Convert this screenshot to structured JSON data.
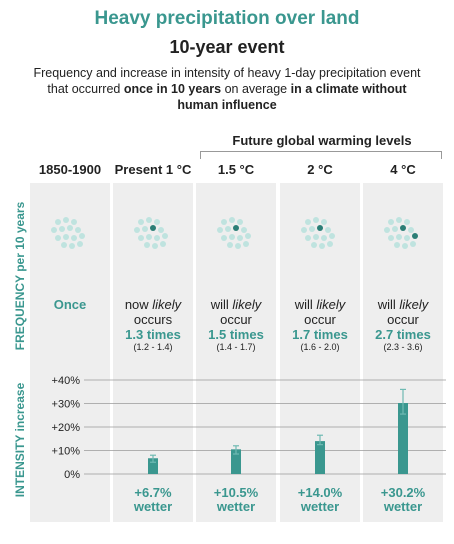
{
  "header": {
    "title": "Heavy precipitation over land",
    "subtitle": "10-year event",
    "desc_part1": "Frequency and increase in intensity of heavy 1-day precipitation event that occurred ",
    "desc_bold1": "once in 10 years",
    "desc_part2": " on average ",
    "desc_bold2": "in a climate without human influence"
  },
  "future_label": "Future global warming levels",
  "axis_labels": {
    "frequency": "FREQUENCY per 10 years",
    "intensity": "INTENSITY increase"
  },
  "colors": {
    "accent": "#3a978f",
    "dot_light": "#bfe3df",
    "dot_dark": "#2b7e76",
    "panel": "#eeeeee"
  },
  "columns": [
    {
      "label": "1850-1900",
      "freq_line1": "",
      "freq_line2": "",
      "freq_value": "Once",
      "freq_range": "",
      "dark_dots": 0
    },
    {
      "label": "Present 1 °C",
      "freq_line1": "now likely",
      "freq_line2": "occurs",
      "freq_value": "1.3 times",
      "freq_range": "(1.2 - 1.4)",
      "dark_dots": 1
    },
    {
      "label": "1.5 °C",
      "freq_line1": "will likely",
      "freq_line2": "occur",
      "freq_value": "1.5 times",
      "freq_range": "(1.4 - 1.7)",
      "dark_dots": 1
    },
    {
      "label": "2 °C",
      "freq_line1": "will likely",
      "freq_line2": "occur",
      "freq_value": "1.7 times",
      "freq_range": "(1.6 - 2.0)",
      "dark_dots": 1
    },
    {
      "label": "4 °C",
      "freq_line1": "will likely",
      "freq_line2": "occur",
      "freq_value": "2.7 times",
      "freq_range": "(2.3 - 3.6)",
      "dark_dots": 2
    }
  ],
  "chart_data": {
    "type": "bar",
    "categories": [
      "Present 1 °C",
      "1.5 °C",
      "2 °C",
      "4 °C"
    ],
    "values": [
      6.7,
      10.5,
      14.0,
      30.2
    ],
    "error_low": [
      5.0,
      8.5,
      12.5,
      25.5
    ],
    "error_high": [
      8.0,
      12.0,
      16.5,
      36.0
    ],
    "value_labels": [
      "+6.7%",
      "+10.5%",
      "+14.0%",
      "+30.2%"
    ],
    "value_suffix": "wetter",
    "ylim": [
      0,
      40
    ],
    "yticks": [
      "0%",
      "+10%",
      "+20%",
      "+30%",
      "+40%"
    ],
    "ylabel": "INTENSITY increase",
    "grid": true
  }
}
